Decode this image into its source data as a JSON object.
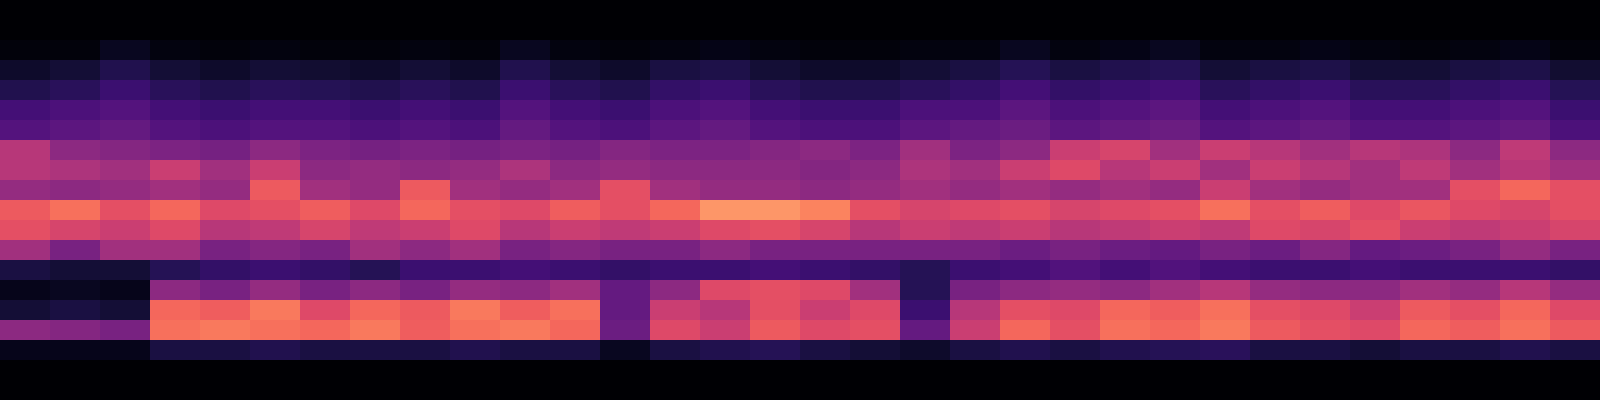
{
  "chart_data": {
    "type": "heatmap",
    "color": "magma",
    "tick_labels": false,
    "color_range": [
      0,
      1
    ],
    "cells": [
      [
        0,
        0,
        0,
        0,
        0,
        0,
        0,
        0,
        0,
        0,
        0,
        0,
        0,
        0,
        0,
        0,
        0,
        0,
        0,
        0,
        0,
        0,
        0,
        0,
        0,
        0,
        0,
        0,
        0,
        0,
        0,
        0
      ],
      [
        0,
        0,
        0,
        0,
        0,
        0,
        0,
        0,
        0,
        0,
        0,
        0,
        0,
        0,
        0,
        0,
        0,
        0,
        0,
        0,
        0,
        0,
        0,
        0,
        0,
        0,
        0,
        0,
        0,
        0,
        0,
        0
      ],
      [
        0.02,
        0.02,
        0.06,
        0.03,
        0.02,
        0.03,
        0.02,
        0.02,
        0.03,
        0.02,
        0.06,
        0.03,
        0.02,
        0.03,
        0.04,
        0.03,
        0.02,
        0.02,
        0.03,
        0.03,
        0.06,
        0.03,
        0.04,
        0.06,
        0.03,
        0.03,
        0.04,
        0.03,
        0.02,
        0.03,
        0.04,
        0.02
      ],
      [
        0.08,
        0.1,
        0.14,
        0.1,
        0.08,
        0.1,
        0.09,
        0.08,
        0.1,
        0.08,
        0.14,
        0.1,
        0.08,
        0.12,
        0.13,
        0.1,
        0.08,
        0.08,
        0.1,
        0.12,
        0.15,
        0.12,
        0.14,
        0.15,
        0.1,
        0.12,
        0.13,
        0.1,
        0.1,
        0.12,
        0.13,
        0.09
      ],
      [
        0.14,
        0.16,
        0.2,
        0.16,
        0.14,
        0.16,
        0.15,
        0.14,
        0.16,
        0.14,
        0.2,
        0.16,
        0.14,
        0.18,
        0.2,
        0.16,
        0.14,
        0.14,
        0.16,
        0.18,
        0.22,
        0.18,
        0.2,
        0.22,
        0.16,
        0.18,
        0.2,
        0.16,
        0.16,
        0.18,
        0.2,
        0.15
      ],
      [
        0.22,
        0.24,
        0.26,
        0.22,
        0.2,
        0.22,
        0.22,
        0.2,
        0.22,
        0.2,
        0.26,
        0.22,
        0.2,
        0.24,
        0.26,
        0.22,
        0.2,
        0.2,
        0.24,
        0.24,
        0.28,
        0.24,
        0.26,
        0.28,
        0.22,
        0.24,
        0.26,
        0.22,
        0.22,
        0.24,
        0.26,
        0.2
      ],
      [
        0.26,
        0.28,
        0.3,
        0.26,
        0.24,
        0.26,
        0.26,
        0.24,
        0.26,
        0.24,
        0.3,
        0.26,
        0.24,
        0.28,
        0.3,
        0.26,
        0.24,
        0.24,
        0.28,
        0.3,
        0.32,
        0.28,
        0.3,
        0.32,
        0.26,
        0.28,
        0.3,
        0.26,
        0.26,
        0.28,
        0.3,
        0.24
      ],
      [
        0.5,
        0.4,
        0.38,
        0.36,
        0.34,
        0.4,
        0.36,
        0.34,
        0.36,
        0.34,
        0.36,
        0.34,
        0.38,
        0.36,
        0.36,
        0.38,
        0.4,
        0.36,
        0.45,
        0.36,
        0.4,
        0.55,
        0.58,
        0.45,
        0.55,
        0.5,
        0.45,
        0.5,
        0.48,
        0.4,
        0.52,
        0.4
      ],
      [
        0.5,
        0.48,
        0.45,
        0.55,
        0.45,
        0.55,
        0.4,
        0.42,
        0.4,
        0.42,
        0.48,
        0.4,
        0.42,
        0.4,
        0.4,
        0.4,
        0.38,
        0.4,
        0.48,
        0.45,
        0.55,
        0.6,
        0.5,
        0.55,
        0.45,
        0.55,
        0.5,
        0.45,
        0.52,
        0.45,
        0.5,
        0.45
      ],
      [
        0.42,
        0.4,
        0.42,
        0.45,
        0.42,
        0.65,
        0.45,
        0.42,
        0.65,
        0.45,
        0.42,
        0.45,
        0.62,
        0.45,
        0.42,
        0.42,
        0.4,
        0.42,
        0.45,
        0.42,
        0.45,
        0.42,
        0.45,
        0.42,
        0.55,
        0.45,
        0.42,
        0.45,
        0.45,
        0.62,
        0.68,
        0.62
      ],
      [
        0.65,
        0.7,
        0.62,
        0.68,
        0.6,
        0.62,
        0.66,
        0.6,
        0.68,
        0.62,
        0.6,
        0.66,
        0.62,
        0.68,
        0.78,
        0.78,
        0.74,
        0.62,
        0.58,
        0.6,
        0.62,
        0.58,
        0.6,
        0.62,
        0.7,
        0.62,
        0.66,
        0.6,
        0.64,
        0.6,
        0.58,
        0.62
      ],
      [
        0.62,
        0.58,
        0.55,
        0.6,
        0.5,
        0.52,
        0.58,
        0.52,
        0.55,
        0.6,
        0.5,
        0.55,
        0.52,
        0.55,
        0.6,
        0.62,
        0.58,
        0.5,
        0.55,
        0.52,
        0.55,
        0.5,
        0.52,
        0.55,
        0.52,
        0.6,
        0.58,
        0.62,
        0.55,
        0.52,
        0.55,
        0.58
      ],
      [
        0.45,
        0.35,
        0.45,
        0.45,
        0.35,
        0.38,
        0.35,
        0.45,
        0.4,
        0.45,
        0.35,
        0.38,
        0.35,
        0.35,
        0.4,
        0.35,
        0.35,
        0.35,
        0.35,
        0.35,
        0.32,
        0.35,
        0.32,
        0.3,
        0.35,
        0.32,
        0.38,
        0.3,
        0.32,
        0.35,
        0.42,
        0.35
      ],
      [
        0.12,
        0.1,
        0.1,
        0.15,
        0.18,
        0.2,
        0.18,
        0.15,
        0.2,
        0.2,
        0.22,
        0.2,
        0.18,
        0.2,
        0.2,
        0.22,
        0.2,
        0.18,
        0.15,
        0.2,
        0.22,
        0.25,
        0.22,
        0.25,
        0.22,
        0.2,
        0.2,
        0.22,
        0.2,
        0.2,
        0.2,
        0.18
      ],
      [
        0.05,
        0.06,
        0.05,
        0.4,
        0.35,
        0.42,
        0.35,
        0.4,
        0.35,
        0.42,
        0.4,
        0.45,
        0.3,
        0.4,
        0.6,
        0.62,
        0.6,
        0.45,
        0.15,
        0.35,
        0.4,
        0.42,
        0.4,
        0.45,
        0.5,
        0.42,
        0.4,
        0.4,
        0.45,
        0.42,
        0.5,
        0.42
      ],
      [
        0.1,
        0.12,
        0.1,
        0.68,
        0.66,
        0.72,
        0.6,
        0.68,
        0.65,
        0.72,
        0.66,
        0.7,
        0.3,
        0.55,
        0.5,
        0.62,
        0.55,
        0.6,
        0.2,
        0.5,
        0.62,
        0.6,
        0.68,
        0.66,
        0.7,
        0.62,
        0.6,
        0.55,
        0.65,
        0.62,
        0.68,
        0.6
      ],
      [
        0.4,
        0.38,
        0.35,
        0.7,
        0.72,
        0.7,
        0.68,
        0.72,
        0.66,
        0.7,
        0.72,
        0.68,
        0.32,
        0.6,
        0.55,
        0.65,
        0.6,
        0.62,
        0.3,
        0.55,
        0.68,
        0.62,
        0.7,
        0.68,
        0.72,
        0.65,
        0.62,
        0.6,
        0.68,
        0.66,
        0.7,
        0.65
      ],
      [
        0.05,
        0.05,
        0.05,
        0.12,
        0.12,
        0.14,
        0.12,
        0.12,
        0.12,
        0.14,
        0.12,
        0.12,
        0.06,
        0.12,
        0.14,
        0.15,
        0.12,
        0.1,
        0.08,
        0.12,
        0.14,
        0.12,
        0.14,
        0.15,
        0.16,
        0.12,
        0.12,
        0.1,
        0.12,
        0.12,
        0.14,
        0.12
      ],
      [
        0,
        0,
        0,
        0,
        0,
        0,
        0,
        0,
        0,
        0,
        0,
        0,
        0,
        0,
        0,
        0,
        0,
        0,
        0,
        0,
        0,
        0,
        0,
        0,
        0,
        0,
        0,
        0,
        0,
        0,
        0,
        0
      ],
      [
        0,
        0,
        0,
        0,
        0,
        0,
        0,
        0,
        0,
        0,
        0,
        0,
        0,
        0,
        0,
        0,
        0,
        0,
        0,
        0,
        0,
        0,
        0,
        0,
        0,
        0,
        0,
        0,
        0,
        0,
        0,
        0
      ]
    ]
  }
}
